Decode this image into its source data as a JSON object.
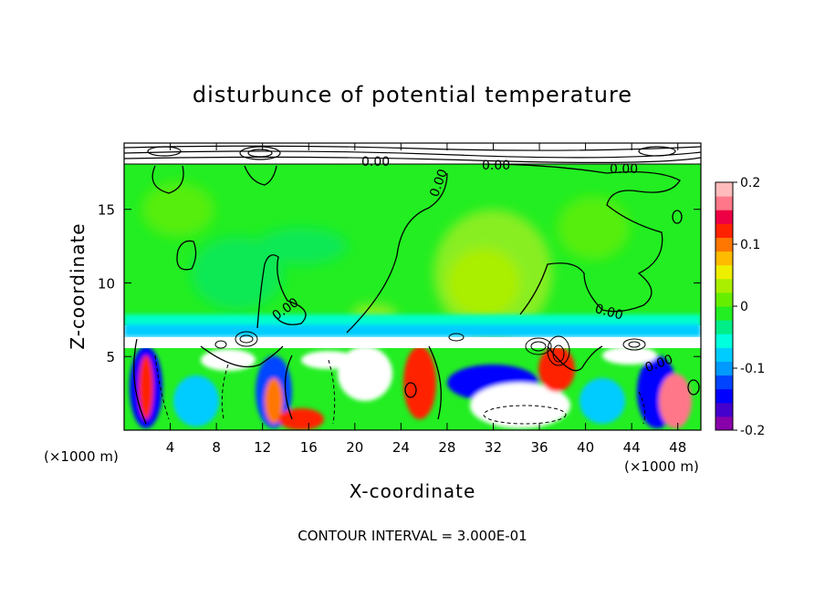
{
  "chart_data": {
    "type": "heatmap",
    "title": "disturbunce of potential temperature",
    "xlabel": "X-coordinate",
    "ylabel": "Z-coordinate",
    "x_unit": "(×1000 m)",
    "x_unit_right": "(×1000 m)",
    "xlim": [
      0,
      50
    ],
    "ylim": [
      0,
      19.5
    ],
    "x_ticks": [
      4,
      8,
      12,
      16,
      20,
      24,
      28,
      32,
      36,
      40,
      44,
      48
    ],
    "y_ticks": [
      5,
      10,
      15
    ],
    "colorbar": {
      "range": [
        -0.2,
        0.2
      ],
      "ticks": [
        "0.2",
        "0.1",
        "0",
        "-0.1",
        "-0.2"
      ],
      "tick_values": [
        0.2,
        0.1,
        0,
        -0.1,
        -0.2
      ]
    },
    "contour_labels": [
      "0.00",
      "0.00",
      "0.00",
      "0.00",
      "0.00",
      "0.00",
      "0.00"
    ],
    "contour_interval_text": "CONTOUR INTERVAL = 3.000E-01",
    "colors": {
      "background_field": "#22ee22",
      "upper_light": "#88ee22",
      "lower_band": "#00ccff",
      "colormap": [
        "#8800aa",
        "#4400cc",
        "#0000ff",
        "#0044ff",
        "#0099ff",
        "#00ccff",
        "#00ffdd",
        "#00ee88",
        "#22ee22",
        "#66ee00",
        "#aaee00",
        "#eeee00",
        "#ffbb00",
        "#ff7700",
        "#ff2200",
        "#ee0044",
        "#ff7788",
        "#ffbbbb"
      ]
    }
  }
}
